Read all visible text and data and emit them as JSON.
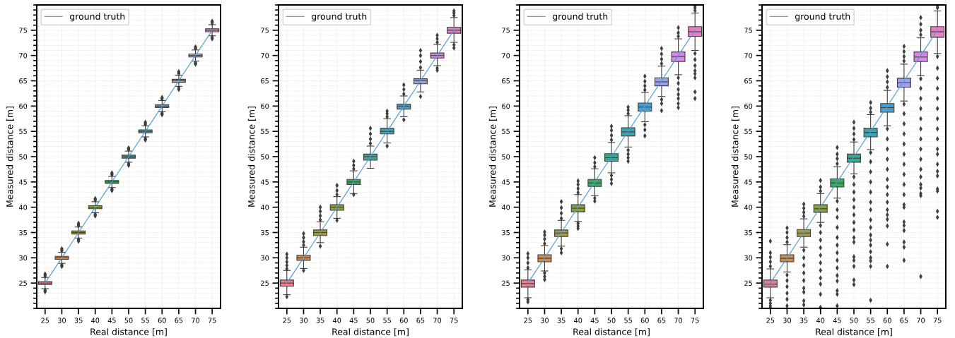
{
  "chart_data": [
    {
      "type": "box",
      "xlabel": "Real distance [m]",
      "ylabel": "Measured distance [m]",
      "categories": [
        "25",
        "30",
        "35",
        "40",
        "45",
        "50",
        "55",
        "60",
        "65",
        "70",
        "75"
      ],
      "colors": [
        "#e8808f",
        "#d18a4a",
        "#a59a47",
        "#8aa03f",
        "#3fa860",
        "#3fa592",
        "#3fa3ad",
        "#479fd1",
        "#9ea0e8",
        "#d889e8",
        "#e57fc4"
      ],
      "boxes": [
        {
          "low": 23.9,
          "q1": 24.7,
          "median": 25,
          "q3": 25.3,
          "high": 26.1,
          "outliers": [
            26.4,
            26.6,
            26.8,
            23.6,
            23.4,
            23.3
          ]
        },
        {
          "low": 28.9,
          "q1": 29.7,
          "median": 30,
          "q3": 30.3,
          "high": 31.1,
          "outliers": [
            31.4,
            31.6,
            31.8,
            28.6,
            28.4,
            28.3
          ]
        },
        {
          "low": 33.9,
          "q1": 34.7,
          "median": 35,
          "q3": 35.3,
          "high": 36.1,
          "outliers": [
            36.4,
            36.6,
            36.8,
            33.6,
            33.4,
            33.3
          ]
        },
        {
          "low": 38.9,
          "q1": 39.7,
          "median": 40,
          "q3": 40.3,
          "high": 41.1,
          "outliers": [
            41.4,
            41.6,
            41.7,
            38.6,
            38.4,
            38.3
          ]
        },
        {
          "low": 43.9,
          "q1": 44.7,
          "median": 45,
          "q3": 45.3,
          "high": 46.1,
          "outliers": [
            46.4,
            46.6,
            46.8,
            43.6,
            43.4,
            43.3
          ]
        },
        {
          "low": 48.9,
          "q1": 49.7,
          "median": 50,
          "q3": 50.3,
          "high": 51.1,
          "outliers": [
            51.4,
            51.6,
            51.7,
            48.6,
            48.4,
            48.3
          ]
        },
        {
          "low": 53.9,
          "q1": 54.7,
          "median": 55,
          "q3": 55.3,
          "high": 56.1,
          "outliers": [
            56.4,
            56.6,
            56.8,
            53.6,
            53.4,
            53.3
          ]
        },
        {
          "low": 58.9,
          "q1": 59.7,
          "median": 60,
          "q3": 60.3,
          "high": 61.1,
          "outliers": [
            61.4,
            61.6,
            61.7,
            58.6,
            58.4,
            58.3
          ]
        },
        {
          "low": 63.9,
          "q1": 64.7,
          "median": 65,
          "q3": 65.3,
          "high": 66.1,
          "outliers": [
            66.4,
            66.6,
            66.8,
            63.6,
            63.4,
            63.3
          ]
        },
        {
          "low": 68.9,
          "q1": 69.7,
          "median": 70,
          "q3": 70.3,
          "high": 71.1,
          "outliers": [
            71.4,
            71.6,
            71.7,
            68.6,
            68.4,
            68.3
          ]
        },
        {
          "low": 73.9,
          "q1": 74.7,
          "median": 75,
          "q3": 75.3,
          "high": 76.1,
          "outliers": [
            76.4,
            76.6,
            76.8,
            73.6,
            73.4,
            73.3
          ]
        }
      ],
      "series": [
        {
          "name": "ground truth",
          "type": "line",
          "color": "#4f9bd6",
          "values": [
            25,
            30,
            35,
            40,
            45,
            50,
            55,
            60,
            65,
            70,
            75
          ]
        }
      ],
      "ylim": [
        20,
        80
      ],
      "yticks": [
        {
          "value": 20,
          "label": null
        },
        {
          "value": 21,
          "label": null
        },
        {
          "value": 22,
          "label": null
        },
        {
          "value": 23,
          "label": null
        },
        {
          "value": 24,
          "label": null
        },
        25,
        {
          "value": 26,
          "label": null
        },
        {
          "value": 27,
          "label": null
        },
        {
          "value": 28,
          "label": null
        },
        {
          "value": 29,
          "label": null
        },
        30,
        {
          "value": 31,
          "label": null
        },
        {
          "value": 32,
          "label": null
        },
        {
          "value": 33,
          "label": null
        },
        {
          "value": 34,
          "label": null
        },
        35,
        {
          "value": 36,
          "label": null
        },
        {
          "value": 37,
          "label": null
        },
        {
          "value": 38,
          "label": null
        },
        {
          "value": 39,
          "label": null
        },
        40,
        {
          "value": 41,
          "label": null
        },
        {
          "value": 42,
          "label": null
        },
        {
          "value": 43,
          "label": null
        },
        {
          "value": 44,
          "label": null
        },
        45,
        {
          "value": 46,
          "label": null
        },
        {
          "value": 47,
          "label": null
        },
        {
          "value": 48,
          "label": null
        },
        {
          "value": 49,
          "label": null
        },
        50,
        {
          "value": 51,
          "label": null
        },
        {
          "value": 52,
          "label": null
        },
        {
          "value": 53,
          "label": null
        },
        {
          "value": 54,
          "label": null
        },
        55,
        {
          "value": 56,
          "label": null
        },
        {
          "value": 57,
          "label": null
        },
        {
          "value": 58,
          "label": null
        },
        {
          "value": 59,
          "label": null
        },
        60,
        {
          "value": 61,
          "label": null
        },
        {
          "value": 62,
          "label": null
        },
        {
          "value": 63,
          "label": null
        },
        {
          "value": 64,
          "label": null
        },
        65,
        {
          "value": 66,
          "label": null
        },
        {
          "value": 67,
          "label": null
        },
        {
          "value": 68,
          "label": null
        },
        {
          "value": 69,
          "label": null
        },
        70,
        {
          "value": 71,
          "label": null
        },
        {
          "value": 72,
          "label": null
        },
        {
          "value": 73,
          "label": null
        },
        {
          "value": 74,
          "label": null
        },
        75,
        {
          "value": 76,
          "label": null
        },
        {
          "value": 77,
          "label": null
        },
        {
          "value": 78,
          "label": null
        },
        {
          "value": 79,
          "label": null
        },
        {
          "value": 80,
          "label": null
        }
      ],
      "grid": true,
      "legend": "top left"
    },
    {
      "type": "box",
      "xlabel": "Real distance [m]",
      "ylabel": "Measured distance [m]",
      "categories": [
        "25",
        "30",
        "35",
        "40",
        "45",
        "50",
        "55",
        "60",
        "65",
        "70",
        "75"
      ],
      "colors": [
        "#e8808f",
        "#d18a4a",
        "#a59a47",
        "#8aa03f",
        "#3fa860",
        "#3fa592",
        "#3fa3ad",
        "#479fd1",
        "#9ea0e8",
        "#d889e8",
        "#e57fc4"
      ],
      "boxes": [
        {
          "low": 22.7,
          "q1": 24.4,
          "median": 25,
          "q3": 25.6,
          "high": 27.5,
          "outliers": [
            27.8,
            28.5,
            29.2,
            30.0,
            30.7,
            22.3
          ]
        },
        {
          "low": 27.9,
          "q1": 29.5,
          "median": 30,
          "q3": 30.5,
          "high": 32.1,
          "outliers": [
            32.5,
            33.2,
            34.0,
            34.8,
            27.5
          ]
        },
        {
          "low": 33.0,
          "q1": 34.4,
          "median": 35,
          "q3": 35.5,
          "high": 37.1,
          "outliers": [
            37.5,
            38.3,
            39.2,
            40.0,
            32.3
          ]
        },
        {
          "low": 37.8,
          "q1": 39.4,
          "median": 40,
          "q3": 40.5,
          "high": 42.1,
          "outliers": [
            42.5,
            43.3,
            44.3,
            37.4
          ]
        },
        {
          "low": 42.7,
          "q1": 44.5,
          "median": 45,
          "q3": 45.5,
          "high": 47.2,
          "outliers": [
            47.6,
            48.3,
            49.1,
            42.5
          ]
        },
        {
          "low": 47.7,
          "q1": 49.3,
          "median": 50,
          "q3": 50.5,
          "high": 52.1,
          "outliers": [
            52.6,
            53.5,
            54.5,
            55.6
          ]
        },
        {
          "low": 52.7,
          "q1": 54.5,
          "median": 55,
          "q3": 55.6,
          "high": 57.5,
          "outliers": [
            57.9,
            58.5,
            59.0,
            52.1
          ]
        },
        {
          "low": 57.9,
          "q1": 59.4,
          "median": 60,
          "q3": 60.4,
          "high": 62.0,
          "outliers": [
            62.4,
            63.3,
            64.2,
            57.3
          ]
        },
        {
          "low": 62.8,
          "q1": 64.4,
          "median": 65,
          "q3": 65.4,
          "high": 67.1,
          "outliers": [
            67.6,
            68.8,
            70.0,
            71.0,
            61.9
          ]
        },
        {
          "low": 68.0,
          "q1": 69.5,
          "median": 70,
          "q3": 70.5,
          "high": 72.2,
          "outliers": [
            72.6,
            73.3,
            74.0,
            67.5,
            67.1
          ]
        },
        {
          "low": 72.6,
          "q1": 74.4,
          "median": 75,
          "q3": 75.6,
          "high": 77.5,
          "outliers": [
            77.9,
            78.4,
            78.8,
            72.1,
            71.5
          ]
        }
      ],
      "series": [
        {
          "name": "ground truth",
          "type": "line",
          "color": "#4f9bd6",
          "values": [
            25,
            30,
            35,
            40,
            45,
            50,
            55,
            60,
            65,
            70,
            75
          ]
        }
      ],
      "ylim": [
        20,
        80
      ],
      "yticks": [
        {
          "value": 20,
          "label": null
        },
        {
          "value": 21,
          "label": null
        },
        {
          "value": 22,
          "label": null
        },
        {
          "value": 23,
          "label": null
        },
        {
          "value": 24,
          "label": null
        },
        25,
        {
          "value": 26,
          "label": null
        },
        {
          "value": 27,
          "label": null
        },
        {
          "value": 28,
          "label": null
        },
        {
          "value": 29,
          "label": null
        },
        30,
        {
          "value": 31,
          "label": null
        },
        {
          "value": 32,
          "label": null
        },
        {
          "value": 33,
          "label": null
        },
        {
          "value": 34,
          "label": null
        },
        35,
        {
          "value": 36,
          "label": null
        },
        {
          "value": 37,
          "label": null
        },
        {
          "value": 38,
          "label": null
        },
        {
          "value": 39,
          "label": null
        },
        40,
        {
          "value": 41,
          "label": null
        },
        {
          "value": 42,
          "label": null
        },
        {
          "value": 43,
          "label": null
        },
        {
          "value": 44,
          "label": null
        },
        45,
        {
          "value": 46,
          "label": null
        },
        {
          "value": 47,
          "label": null
        },
        {
          "value": 48,
          "label": null
        },
        {
          "value": 49,
          "label": null
        },
        50,
        {
          "value": 51,
          "label": null
        },
        {
          "value": 52,
          "label": null
        },
        {
          "value": 53,
          "label": null
        },
        {
          "value": 54,
          "label": null
        },
        55,
        {
          "value": 56,
          "label": null
        },
        {
          "value": 57,
          "label": null
        },
        {
          "value": 58,
          "label": null
        },
        {
          "value": 59,
          "label": null
        },
        60,
        {
          "value": 61,
          "label": null
        },
        {
          "value": 62,
          "label": null
        },
        {
          "value": 63,
          "label": null
        },
        {
          "value": 64,
          "label": null
        },
        65,
        {
          "value": 66,
          "label": null
        },
        {
          "value": 67,
          "label": null
        },
        {
          "value": 68,
          "label": null
        },
        {
          "value": 69,
          "label": null
        },
        70,
        {
          "value": 71,
          "label": null
        },
        {
          "value": 72,
          "label": null
        },
        {
          "value": 73,
          "label": null
        },
        {
          "value": 74,
          "label": null
        },
        75,
        {
          "value": 76,
          "label": null
        },
        {
          "value": 77,
          "label": null
        },
        {
          "value": 78,
          "label": null
        },
        {
          "value": 79,
          "label": null
        },
        {
          "value": 80,
          "label": null
        }
      ],
      "grid": true,
      "legend": "top left"
    },
    {
      "type": "box",
      "xlabel": "Real distance [m]",
      "ylabel": "Measured distance [m]",
      "categories": [
        "25",
        "30",
        "35",
        "40",
        "45",
        "50",
        "55",
        "60",
        "65",
        "70",
        "75"
      ],
      "colors": [
        "#e8808f",
        "#d18a4a",
        "#a59a47",
        "#8aa03f",
        "#3fa860",
        "#3fa592",
        "#3fa3ad",
        "#479fd1",
        "#9ea0e8",
        "#d889e8",
        "#e57fc4"
      ],
      "boxes": [
        {
          "low": 22.1,
          "q1": 24.2,
          "median": 24.9,
          "q3": 25.6,
          "high": 27.6,
          "outliers": [
            28.0,
            29.0,
            30.0,
            30.8,
            21.7,
            21.3
          ]
        },
        {
          "low": 27.4,
          "q1": 29.2,
          "median": 29.9,
          "q3": 30.6,
          "high": 32.4,
          "outliers": [
            32.8,
            33.7,
            34.5,
            35.1,
            27.0,
            26.3,
            25.7
          ]
        },
        {
          "low": 32.3,
          "q1": 34.2,
          "median": 34.9,
          "q3": 35.5,
          "high": 37.4,
          "outliers": [
            37.8,
            38.8,
            39.9,
            41.1,
            31.8,
            31.0
          ]
        },
        {
          "low": 37.2,
          "q1": 39.1,
          "median": 39.8,
          "q3": 40.5,
          "high": 42.5,
          "outliers": [
            42.9,
            43.7,
            44.5,
            45.2,
            36.8,
            36.3,
            35.8
          ]
        },
        {
          "low": 42.3,
          "q1": 44.1,
          "median": 44.8,
          "q3": 45.5,
          "high": 47.6,
          "outliers": [
            48.0,
            48.8,
            49.8,
            41.8,
            41.2
          ]
        },
        {
          "low": 46.8,
          "q1": 49.1,
          "median": 49.8,
          "q3": 50.6,
          "high": 52.8,
          "outliers": [
            53.3,
            54.2,
            55.2,
            56.0,
            46.3,
            45.5,
            44.7
          ]
        },
        {
          "low": 51.9,
          "q1": 54.1,
          "median": 54.9,
          "q3": 55.7,
          "high": 58.1,
          "outliers": [
            58.5,
            59.2,
            59.8,
            51.3,
            50.5,
            49.8,
            49.1
          ]
        },
        {
          "low": 56.9,
          "q1": 59.0,
          "median": 59.8,
          "q3": 60.6,
          "high": 62.7,
          "outliers": [
            63.2,
            64.0,
            64.9,
            65.9,
            56.3,
            55.3,
            54.1
          ]
        },
        {
          "low": 61.9,
          "q1": 64.0,
          "median": 64.8,
          "q3": 65.6,
          "high": 67.9,
          "outliers": [
            68.4,
            69.3,
            70.3,
            71.4,
            61.3,
            60.5,
            59.1
          ]
        },
        {
          "low": 66.2,
          "q1": 68.8,
          "median": 69.8,
          "q3": 70.7,
          "high": 73.3,
          "outliers": [
            73.8,
            74.5,
            75.5,
            65.6,
            64.5,
            63.3,
            62.3,
            61.5,
            60.5,
            59.7
          ]
        },
        {
          "low": 71.0,
          "q1": 73.8,
          "median": 74.7,
          "q3": 75.7,
          "high": 78.4,
          "outliers": [
            78.9,
            79.4,
            79.8,
            70.4,
            69.2,
            68.0,
            67.0,
            66.4,
            65.6,
            62.8,
            61.5
          ]
        }
      ],
      "series": [
        {
          "name": "ground truth",
          "type": "line",
          "color": "#4f9bd6",
          "values": [
            25,
            30,
            35,
            40,
            45,
            50,
            55,
            60,
            65,
            70,
            75
          ]
        }
      ],
      "ylim": [
        20,
        80
      ],
      "yticks": [
        {
          "value": 20,
          "label": null
        },
        {
          "value": 21,
          "label": null
        },
        {
          "value": 22,
          "label": null
        },
        {
          "value": 23,
          "label": null
        },
        {
          "value": 24,
          "label": null
        },
        25,
        {
          "value": 26,
          "label": null
        },
        {
          "value": 27,
          "label": null
        },
        {
          "value": 28,
          "label": null
        },
        {
          "value": 29,
          "label": null
        },
        30,
        {
          "value": 31,
          "label": null
        },
        {
          "value": 32,
          "label": null
        },
        {
          "value": 33,
          "label": null
        },
        {
          "value": 34,
          "label": null
        },
        35,
        {
          "value": 36,
          "label": null
        },
        {
          "value": 37,
          "label": null
        },
        {
          "value": 38,
          "label": null
        },
        {
          "value": 39,
          "label": null
        },
        40,
        {
          "value": 41,
          "label": null
        },
        {
          "value": 42,
          "label": null
        },
        {
          "value": 43,
          "label": null
        },
        {
          "value": 44,
          "label": null
        },
        45,
        {
          "value": 46,
          "label": null
        },
        {
          "value": 47,
          "label": null
        },
        {
          "value": 48,
          "label": null
        },
        {
          "value": 49,
          "label": null
        },
        50,
        {
          "value": 51,
          "label": null
        },
        {
          "value": 52,
          "label": null
        },
        {
          "value": 53,
          "label": null
        },
        {
          "value": 54,
          "label": null
        },
        55,
        {
          "value": 56,
          "label": null
        },
        {
          "value": 57,
          "label": null
        },
        {
          "value": 58,
          "label": null
        },
        {
          "value": 59,
          "label": null
        },
        60,
        {
          "value": 61,
          "label": null
        },
        {
          "value": 62,
          "label": null
        },
        {
          "value": 63,
          "label": null
        },
        {
          "value": 64,
          "label": null
        },
        65,
        {
          "value": 66,
          "label": null
        },
        {
          "value": 67,
          "label": null
        },
        {
          "value": 68,
          "label": null
        },
        {
          "value": 69,
          "label": null
        },
        70,
        {
          "value": 71,
          "label": null
        },
        {
          "value": 72,
          "label": null
        },
        {
          "value": 73,
          "label": null
        },
        {
          "value": 74,
          "label": null
        },
        75,
        {
          "value": 76,
          "label": null
        },
        {
          "value": 77,
          "label": null
        },
        {
          "value": 78,
          "label": null
        },
        {
          "value": 79,
          "label": null
        },
        {
          "value": 80,
          "label": null
        }
      ],
      "grid": true,
      "legend": "top left"
    },
    {
      "type": "box",
      "xlabel": "Real distance [m]",
      "ylabel": "Measured distance [m]",
      "categories": [
        "25",
        "30",
        "35",
        "40",
        "45",
        "50",
        "55",
        "60",
        "65",
        "70",
        "75"
      ],
      "colors": [
        "#e8808f",
        "#d18a4a",
        "#a59a47",
        "#8aa03f",
        "#3fa860",
        "#3fa592",
        "#3fa3ad",
        "#479fd1",
        "#9ea0e8",
        "#d889e8",
        "#e57fc4"
      ],
      "boxes": [
        {
          "low": 22.1,
          "q1": 24.2,
          "median": 24.8,
          "q3": 25.6,
          "high": 27.8,
          "outliers": [
            28.3,
            29.2,
            30.1,
            31.0,
            33.3,
            21.6,
            21.0,
            20.5,
            20.1
          ]
        },
        {
          "low": 27.2,
          "q1": 29.2,
          "median": 29.9,
          "q3": 30.6,
          "high": 32.6,
          "outliers": [
            33.1,
            34.0,
            35.0,
            35.9,
            26.6,
            25.5,
            24.3,
            23.0,
            21.8,
            20.5
          ]
        },
        {
          "low": 32.1,
          "q1": 34.2,
          "median": 34.9,
          "q3": 35.6,
          "high": 37.7,
          "outliers": [
            38.2,
            39.0,
            39.8,
            40.6,
            31.5,
            30.0,
            28.5,
            27.0,
            25.5,
            24.0,
            23.2,
            21.5,
            20.7
          ]
        },
        {
          "low": 37.0,
          "q1": 39.0,
          "median": 39.7,
          "q3": 40.5,
          "high": 42.7,
          "outliers": [
            43.2,
            44.0,
            45.3,
            36.4,
            35.0,
            33.5,
            32.0,
            30.5,
            29.0,
            27.5,
            26.0,
            24.8,
            22.8,
            20.2
          ]
        },
        {
          "low": 41.8,
          "q1": 44.0,
          "median": 44.8,
          "q3": 45.6,
          "high": 48.0,
          "outliers": [
            48.6,
            49.6,
            50.5,
            51.8,
            41.2,
            39.5,
            38.0,
            36.0,
            34.0,
            32.5,
            31.0,
            29.5,
            28.0,
            26.5,
            25.4,
            23.5,
            22.8,
            20.5
          ]
        },
        {
          "low": 46.6,
          "q1": 48.9,
          "median": 49.7,
          "q3": 50.5,
          "high": 52.9,
          "outliers": [
            53.4,
            54.5,
            55.6,
            56.8,
            46.0,
            44.5,
            43.0,
            41.5,
            40.0,
            38.5,
            37.0,
            35.5,
            34.0,
            33.1,
            30.2,
            29.5,
            28.3,
            25.6,
            24.7
          ]
        },
        {
          "low": 51.4,
          "q1": 53.9,
          "median": 54.8,
          "q3": 55.6,
          "high": 58.3,
          "outliers": [
            58.8,
            59.6,
            60.7,
            50.8,
            49.0,
            47.0,
            45.0,
            43.0,
            41.0,
            39.5,
            37.5,
            36.0,
            34.5,
            33.5,
            32.5,
            31.2,
            30.0,
            29.4,
            28.3,
            21.6
          ]
        },
        {
          "low": 56.1,
          "q1": 58.8,
          "median": 59.7,
          "q3": 60.5,
          "high": 63.1,
          "outliers": [
            63.7,
            64.8,
            65.8,
            67.0,
            55.5,
            53.5,
            51.5,
            49.5,
            47.5,
            45.5,
            44.0,
            42.5,
            41.0,
            39.5,
            38.5,
            37.6,
            36.3,
            32.7,
            28.3
          ]
        },
        {
          "low": 61.0,
          "q1": 63.7,
          "median": 64.6,
          "q3": 65.5,
          "high": 68.3,
          "outliers": [
            68.9,
            69.8,
            70.8,
            71.8,
            60.4,
            58.5,
            56.5,
            54.5,
            52.5,
            50.5,
            48.5,
            46.5,
            44.5,
            42.5,
            40.5,
            40.0,
            37.1,
            36.4,
            35.4,
            33.1,
            32.1,
            29.5
          ]
        },
        {
          "low": 66.0,
          "q1": 68.8,
          "median": 69.7,
          "q3": 70.7,
          "high": 73.5,
          "outliers": [
            74.1,
            75.0,
            76.2,
            77.5,
            65.4,
            63.5,
            61.5,
            59.5,
            57.5,
            55.5,
            53.5,
            51.5,
            49.5,
            47.5,
            46.0,
            44.5,
            43.8,
            42.7,
            42.3,
            26.3
          ]
        },
        {
          "low": 70.4,
          "q1": 73.6,
          "median": 74.7,
          "q3": 75.7,
          "high": 78.8,
          "outliers": [
            79.4,
            79.8,
            69.8,
            67.5,
            65.5,
            63.5,
            61.5,
            59.5,
            57.5,
            55.5,
            53.5,
            51.5,
            50.5,
            48.5,
            47.1,
            46.2,
            43.6,
            43.2,
            39.2,
            38.0
          ]
        }
      ],
      "series": [
        {
          "name": "ground truth",
          "type": "line",
          "color": "#4f9bd6",
          "values": [
            25,
            30,
            35,
            40,
            45,
            50,
            55,
            60,
            65,
            70,
            75
          ]
        }
      ],
      "ylim": [
        20,
        80
      ],
      "yticks": [
        {
          "value": 20,
          "label": null
        },
        {
          "value": 21,
          "label": null
        },
        {
          "value": 22,
          "label": null
        },
        {
          "value": 23,
          "label": null
        },
        {
          "value": 24,
          "label": null
        },
        25,
        {
          "value": 26,
          "label": null
        },
        {
          "value": 27,
          "label": null
        },
        {
          "value": 28,
          "label": null
        },
        {
          "value": 29,
          "label": null
        },
        30,
        {
          "value": 31,
          "label": null
        },
        {
          "value": 32,
          "label": null
        },
        {
          "value": 33,
          "label": null
        },
        {
          "value": 34,
          "label": null
        },
        35,
        {
          "value": 36,
          "label": null
        },
        {
          "value": 37,
          "label": null
        },
        {
          "value": 38,
          "label": null
        },
        {
          "value": 39,
          "label": null
        },
        40,
        {
          "value": 41,
          "label": null
        },
        {
          "value": 42,
          "label": null
        },
        {
          "value": 43,
          "label": null
        },
        {
          "value": 44,
          "label": null
        },
        45,
        {
          "value": 46,
          "label": null
        },
        {
          "value": 47,
          "label": null
        },
        {
          "value": 48,
          "label": null
        },
        {
          "value": 49,
          "label": null
        },
        50,
        {
          "value": 51,
          "label": null
        },
        {
          "value": 52,
          "label": null
        },
        {
          "value": 53,
          "label": null
        },
        {
          "value": 54,
          "label": null
        },
        55,
        {
          "value": 56,
          "label": null
        },
        {
          "value": 57,
          "label": null
        },
        {
          "value": 58,
          "label": null
        },
        {
          "value": 59,
          "label": null
        },
        60,
        {
          "value": 61,
          "label": null
        },
        {
          "value": 62,
          "label": null
        },
        {
          "value": 63,
          "label": null
        },
        {
          "value": 64,
          "label": null
        },
        65,
        {
          "value": 66,
          "label": null
        },
        {
          "value": 67,
          "label": null
        },
        {
          "value": 68,
          "label": null
        },
        {
          "value": 69,
          "label": null
        },
        70,
        {
          "value": 71,
          "label": null
        },
        {
          "value": 72,
          "label": null
        },
        {
          "value": 73,
          "label": null
        },
        {
          "value": 74,
          "label": null
        },
        75,
        {
          "value": 76,
          "label": null
        },
        {
          "value": 77,
          "label": null
        },
        {
          "value": 78,
          "label": null
        },
        {
          "value": 79,
          "label": null
        },
        {
          "value": 80,
          "label": null
        }
      ],
      "grid": true,
      "legend": "top left"
    }
  ]
}
